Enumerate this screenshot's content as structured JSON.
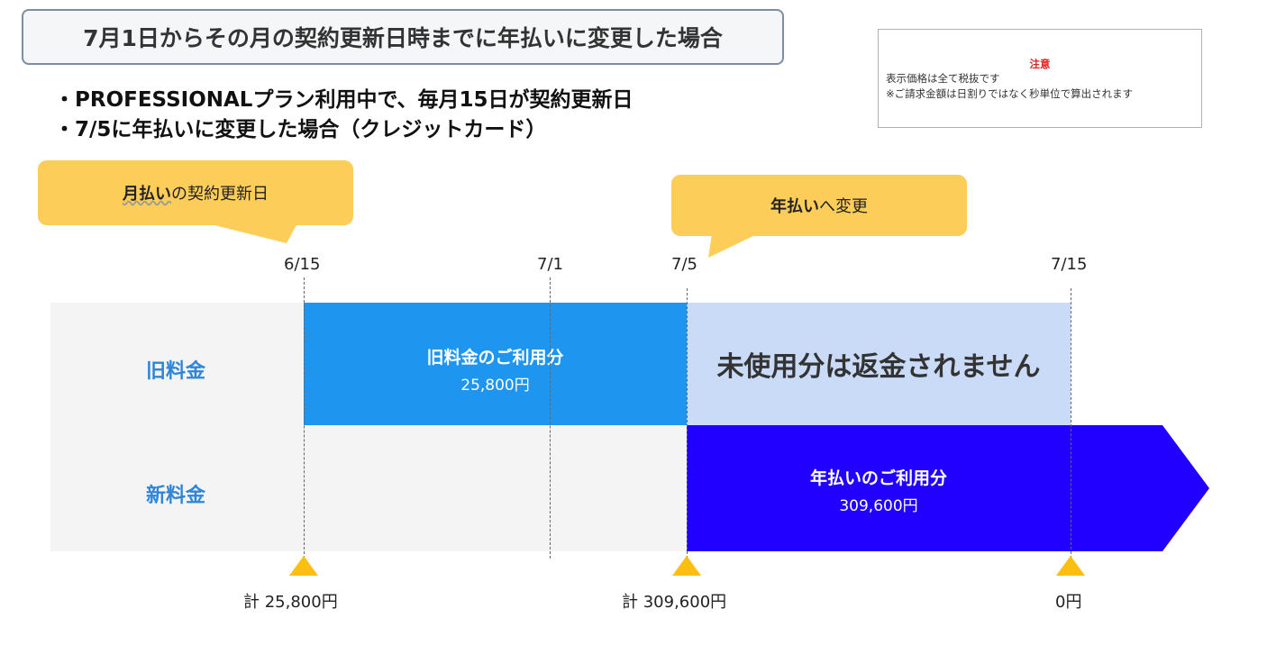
{
  "title": "7月1日からその月の契約更新日時までに年払いに変更した場合",
  "note": {
    "heading": "注意",
    "line1": "表示価格は全て税抜です",
    "line2": "※ご請求金額は日割りではなく秒単位で算出されます"
  },
  "bullets": [
    "・PROFESSIONALプラン利用中で、毎月15日が契約更新日",
    "・7/5に年払いに変更した場合（クレジットカード）"
  ],
  "callouts": {
    "monthly": {
      "bold": "月払い",
      "rest": "の契約更新日"
    },
    "annual": {
      "bold": "年払い",
      "rest": "へ変更"
    }
  },
  "dates": [
    "6/15",
    "7/1",
    "7/5",
    "7/15"
  ],
  "rows": {
    "old": "旧料金",
    "new": "新料金"
  },
  "old_used": {
    "title": "旧料金のご利用分",
    "amount": "25,800円"
  },
  "old_unused": {
    "text": "未使用分は返金されません"
  },
  "new_used": {
    "title": "年払いのご利用分",
    "amount": "309,600円"
  },
  "totals": [
    "計 25,800円",
    "計 309,600円",
    "0円"
  ],
  "colors": {
    "old_used": "#1e96f0",
    "old_unused": "#c9dbf7",
    "new_used": "#2200ff",
    "callout": "#fdcd5a",
    "marker": "#fbbf0f",
    "row_label": "#2f86d6"
  }
}
